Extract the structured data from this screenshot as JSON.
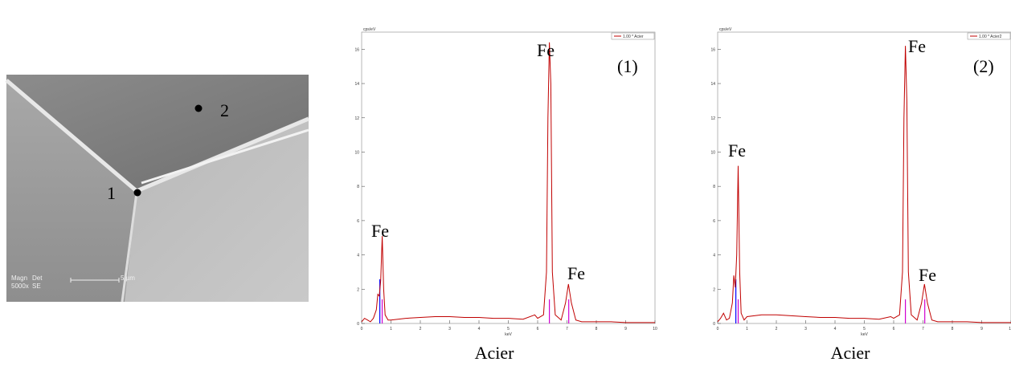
{
  "image": {
    "points": [
      "1",
      "2"
    ],
    "info": [
      "Magn",
      "Det",
      "5000x",
      "SE",
      "5 µm"
    ]
  },
  "chart_data": [
    {
      "type": "line",
      "x": [
        0,
        0.1,
        0.2,
        0.3,
        0.4,
        0.5,
        0.55,
        0.6,
        0.65,
        0.7,
        0.75,
        0.8,
        0.9,
        1.0,
        1.5,
        2,
        2.5,
        3,
        3.5,
        4,
        4.5,
        5,
        5.5,
        5.9,
        6.0,
        6.2,
        6.3,
        6.35,
        6.4,
        6.45,
        6.5,
        6.6,
        6.8,
        6.95,
        7.05,
        7.15,
        7.3,
        7.5,
        8,
        8.5,
        9,
        9.5,
        10
      ],
      "series": [
        {
          "name": "1.00 * Acier",
          "color": "#c00000",
          "values": [
            0.1,
            0.3,
            0.2,
            0.1,
            0.3,
            0.8,
            1.7,
            1.6,
            2.5,
            5.1,
            2.0,
            0.5,
            0.2,
            0.2,
            0.3,
            0.35,
            0.4,
            0.4,
            0.35,
            0.35,
            0.3,
            0.3,
            0.25,
            0.5,
            0.3,
            0.5,
            3,
            12,
            16.4,
            14,
            3,
            0.5,
            0.2,
            1.2,
            2.3,
            1.2,
            0.2,
            0.1,
            0.1,
            0.1,
            0.05,
            0.05,
            0.05
          ]
        }
      ],
      "xlim": [
        0,
        10
      ],
      "ylim": [
        0,
        17
      ],
      "xticks": [
        0,
        1,
        2,
        3,
        4,
        5,
        6,
        7,
        8,
        9,
        10
      ],
      "yticks": [
        0,
        2,
        4,
        6,
        8,
        10,
        12,
        14,
        16
      ],
      "x_label": "keV",
      "y_label": "cps/eV",
      "annotations": [
        "Fe",
        "Fe",
        "Fe",
        "(1)"
      ],
      "caption": "Acier"
    },
    {
      "type": "line",
      "x": [
        0,
        0.1,
        0.2,
        0.3,
        0.4,
        0.5,
        0.55,
        0.6,
        0.65,
        0.7,
        0.75,
        0.8,
        0.9,
        1.0,
        1.5,
        2,
        2.5,
        3,
        3.5,
        4,
        4.5,
        5,
        5.5,
        5.9,
        6.0,
        6.2,
        6.3,
        6.35,
        6.4,
        6.45,
        6.5,
        6.6,
        6.8,
        6.95,
        7.05,
        7.15,
        7.3,
        7.5,
        8,
        8.5,
        9,
        9.5,
        10
      ],
      "series": [
        {
          "name": "1.00 * Acier2",
          "color": "#c00000",
          "values": [
            0.1,
            0.3,
            0.6,
            0.2,
            0.3,
            1.2,
            2.8,
            2.1,
            4,
            9.2,
            3,
            0.6,
            0.2,
            0.4,
            0.5,
            0.5,
            0.45,
            0.4,
            0.35,
            0.35,
            0.3,
            0.3,
            0.25,
            0.4,
            0.3,
            0.5,
            3,
            12,
            16.2,
            13,
            3,
            0.5,
            0.2,
            1.2,
            2.3,
            1.2,
            0.2,
            0.1,
            0.1,
            0.1,
            0.05,
            0.05,
            0.05
          ]
        }
      ],
      "xlim": [
        0,
        10
      ],
      "ylim": [
        0,
        17
      ],
      "xticks": [
        0,
        1,
        2,
        3,
        4,
        5,
        6,
        7,
        8,
        9,
        10
      ],
      "yticks": [
        0,
        2,
        4,
        6,
        8,
        10,
        12,
        14,
        16
      ],
      "x_label": "keV",
      "y_label": "cps/eV",
      "annotations": [
        "Fe",
        "Fe",
        "Fe",
        "(2)"
      ],
      "caption": "Acier"
    }
  ]
}
